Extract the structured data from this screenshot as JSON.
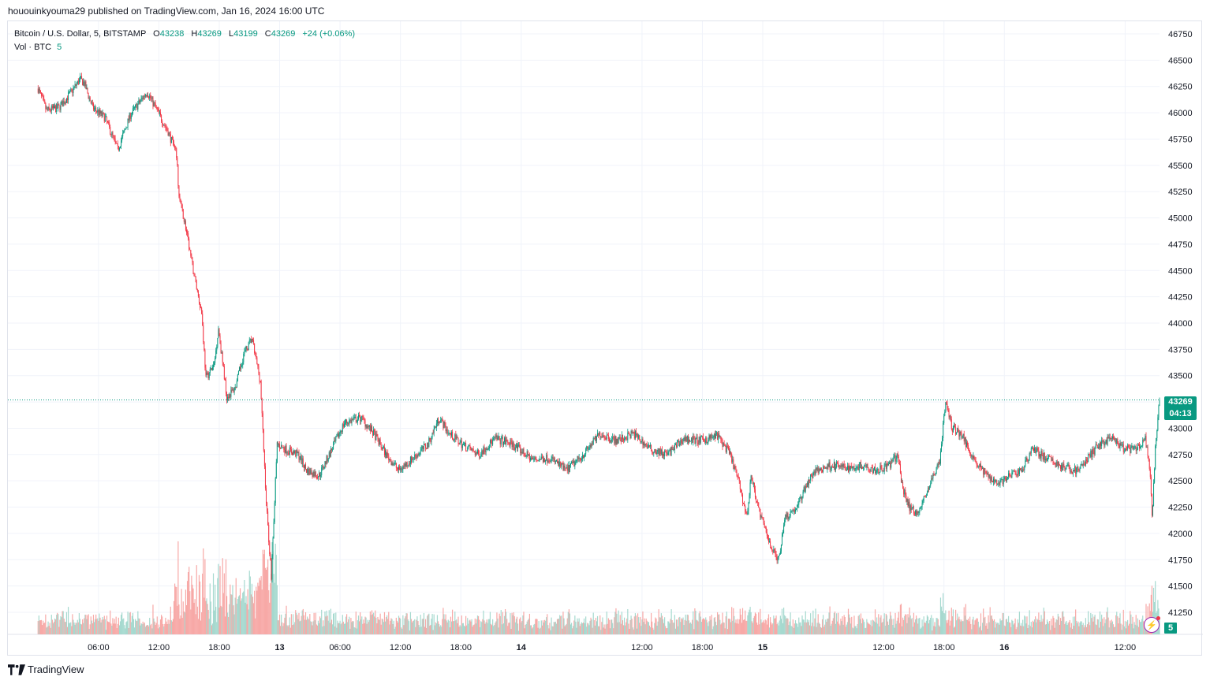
{
  "header": {
    "publisher_line": "hououinkyouma29 published on TradingView.com, Jan 16, 2024 16:00 UTC"
  },
  "legend": {
    "symbol": "Bitcoin / U.S. Dollar, 5, BITSTAMP",
    "o_label": "O",
    "o_value": "43238",
    "h_label": "H",
    "h_value": "43269",
    "l_label": "L",
    "l_value": "43199",
    "c_label": "C",
    "c_value": "43269",
    "change": "+24 (+0.06%)",
    "vol_label": "Vol · BTC",
    "vol_value": "5"
  },
  "last_price": {
    "price": "43269",
    "countdown": "04:13"
  },
  "volume_tag": "5",
  "footer": {
    "brand": "TradingView"
  },
  "colors": {
    "up": "#089981",
    "down": "#f23645",
    "up_vol": "#a6d9cf",
    "down_vol": "#f7a9a7",
    "grid": "#f0f3fa",
    "text": "#131722"
  },
  "chart_data": {
    "type": "candlestick",
    "title": "Bitcoin / U.S. Dollar, 5, BITSTAMP",
    "y_ticks": [
      41250,
      41500,
      41750,
      42000,
      42250,
      42500,
      42750,
      43000,
      43250,
      43500,
      43750,
      44000,
      44250,
      44500,
      44750,
      45000,
      45250,
      45500,
      45750,
      46000,
      46250,
      46500,
      46750
    ],
    "ylim": [
      41040,
      46870
    ],
    "x_ticks": [
      {
        "label": "06:00",
        "bold": false,
        "idx": 72
      },
      {
        "label": "12:00",
        "bold": false,
        "idx": 144
      },
      {
        "label": "18:00",
        "bold": false,
        "idx": 216
      },
      {
        "label": "13",
        "bold": true,
        "idx": 288
      },
      {
        "label": "06:00",
        "bold": false,
        "idx": 360
      },
      {
        "label": "12:00",
        "bold": false,
        "idx": 432
      },
      {
        "label": "18:00",
        "bold": false,
        "idx": 504
      },
      {
        "label": "14",
        "bold": true,
        "idx": 576
      },
      {
        "label": "12:00",
        "bold": false,
        "idx": 720
      },
      {
        "label": "18:00",
        "bold": false,
        "idx": 792
      },
      {
        "label": "15",
        "bold": true,
        "idx": 864
      },
      {
        "label": "12:00",
        "bold": false,
        "idx": 1008
      },
      {
        "label": "18:00",
        "bold": false,
        "idx": 1080
      },
      {
        "label": "16",
        "bold": true,
        "idx": 1152
      },
      {
        "label": "12:00",
        "bold": false,
        "idx": 1296
      }
    ],
    "x_range_idx": [
      -36,
      1337
    ],
    "path_points": [
      [
        0,
        46230
      ],
      [
        10,
        46020
      ],
      [
        25,
        46050
      ],
      [
        40,
        46200
      ],
      [
        50,
        46320
      ],
      [
        55,
        46280
      ],
      [
        65,
        46050
      ],
      [
        80,
        45950
      ],
      [
        95,
        45650
      ],
      [
        110,
        45980
      ],
      [
        130,
        46200
      ],
      [
        140,
        46050
      ],
      [
        155,
        45820
      ],
      [
        165,
        45600
      ],
      [
        168,
        45200
      ],
      [
        175,
        44950
      ],
      [
        185,
        44500
      ],
      [
        195,
        44100
      ],
      [
        200,
        43480
      ],
      [
        210,
        43600
      ],
      [
        215,
        43950
      ],
      [
        225,
        43300
      ],
      [
        235,
        43380
      ],
      [
        245,
        43700
      ],
      [
        255,
        43850
      ],
      [
        265,
        43450
      ],
      [
        272,
        42300
      ],
      [
        278,
        41600
      ],
      [
        285,
        42850
      ],
      [
        295,
        42800
      ],
      [
        310,
        42750
      ],
      [
        320,
        42600
      ],
      [
        335,
        42550
      ],
      [
        355,
        42880
      ],
      [
        365,
        43050
      ],
      [
        385,
        43100
      ],
      [
        400,
        42950
      ],
      [
        415,
        42750
      ],
      [
        430,
        42600
      ],
      [
        445,
        42700
      ],
      [
        465,
        42850
      ],
      [
        478,
        43100
      ],
      [
        490,
        42950
      ],
      [
        505,
        42850
      ],
      [
        525,
        42750
      ],
      [
        545,
        42900
      ],
      [
        565,
        42850
      ],
      [
        590,
        42700
      ],
      [
        610,
        42720
      ],
      [
        630,
        42600
      ],
      [
        650,
        42750
      ],
      [
        670,
        42950
      ],
      [
        690,
        42880
      ],
      [
        710,
        42950
      ],
      [
        730,
        42800
      ],
      [
        750,
        42750
      ],
      [
        770,
        42900
      ],
      [
        790,
        42880
      ],
      [
        810,
        42930
      ],
      [
        825,
        42750
      ],
      [
        835,
        42500
      ],
      [
        845,
        42150
      ],
      [
        850,
        42550
      ],
      [
        860,
        42200
      ],
      [
        865,
        42080
      ],
      [
        875,
        41850
      ],
      [
        883,
        41750
      ],
      [
        890,
        42150
      ],
      [
        905,
        42250
      ],
      [
        915,
        42450
      ],
      [
        925,
        42580
      ],
      [
        945,
        42650
      ],
      [
        965,
        42620
      ],
      [
        985,
        42650
      ],
      [
        1000,
        42600
      ],
      [
        1015,
        42650
      ],
      [
        1025,
        42750
      ],
      [
        1030,
        42450
      ],
      [
        1040,
        42230
      ],
      [
        1050,
        42200
      ],
      [
        1065,
        42500
      ],
      [
        1075,
        42700
      ],
      [
        1082,
        43250
      ],
      [
        1090,
        43000
      ],
      [
        1100,
        42950
      ],
      [
        1110,
        42800
      ],
      [
        1120,
        42650
      ],
      [
        1132,
        42550
      ],
      [
        1145,
        42480
      ],
      [
        1160,
        42550
      ],
      [
        1175,
        42620
      ],
      [
        1185,
        42820
      ],
      [
        1195,
        42750
      ],
      [
        1210,
        42680
      ],
      [
        1225,
        42620
      ],
      [
        1240,
        42600
      ],
      [
        1255,
        42750
      ],
      [
        1265,
        42850
      ],
      [
        1280,
        42900
      ],
      [
        1295,
        42800
      ],
      [
        1310,
        42800
      ],
      [
        1320,
        42900
      ],
      [
        1326,
        42550
      ],
      [
        1328,
        42130
      ],
      [
        1332,
        42800
      ],
      [
        1335,
        43100
      ],
      [
        1337,
        43269
      ]
    ]
  }
}
